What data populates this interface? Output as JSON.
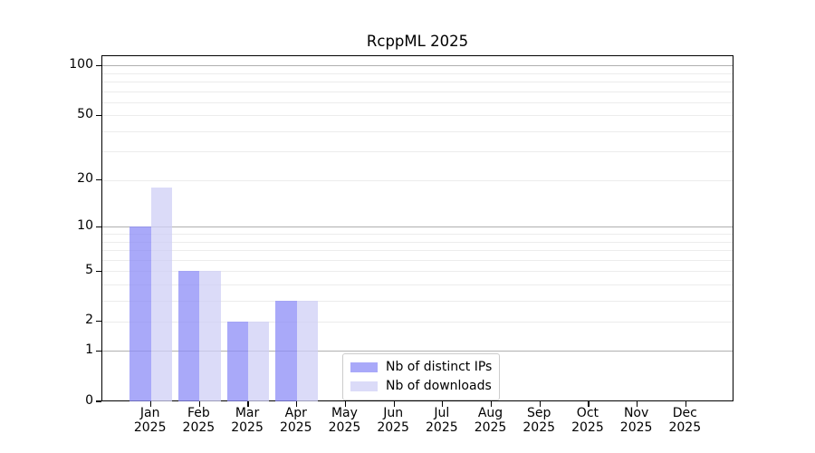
{
  "chart_data": {
    "type": "bar",
    "title": "RcppML 2025",
    "x_unit": "month",
    "categories": [
      "Jan",
      "Feb",
      "Mar",
      "Apr",
      "May",
      "Jun",
      "Jul",
      "Aug",
      "Sep",
      "Oct",
      "Nov",
      "Dec"
    ],
    "year": "2025",
    "series": [
      {
        "name": "Nb of distinct IPs",
        "color": "#a9a9f9",
        "fill_rgba": "rgba(140,140,247,0.75)",
        "values": [
          10,
          5,
          2,
          3,
          0,
          0,
          0,
          0,
          0,
          0,
          0,
          0
        ]
      },
      {
        "name": "Nb of downloads",
        "color": "#dbdbf8",
        "fill_rgba": "rgba(207,207,246,0.75)",
        "values": [
          18,
          5,
          2,
          3,
          0,
          0,
          0,
          0,
          0,
          0,
          0,
          0
        ]
      }
    ],
    "yscale": "log10(value+1)",
    "ylim": [
      0,
      114
    ],
    "y_ticks": [
      100,
      50,
      20,
      10,
      5,
      2,
      1,
      0
    ],
    "gridlines": {
      "major": [
        1,
        10,
        100
      ],
      "minor": [
        2,
        3,
        4,
        5,
        6,
        7,
        8,
        9,
        20,
        30,
        40,
        50,
        60,
        70,
        80,
        90
      ]
    },
    "grid": true,
    "legend_position": "inside lower-center"
  },
  "colors": {
    "major_grid": "#b0b0b0",
    "minor_grid": "#ececec",
    "axis": "#000000",
    "legend_border": "#cccccc",
    "background": "#ffffff"
  }
}
